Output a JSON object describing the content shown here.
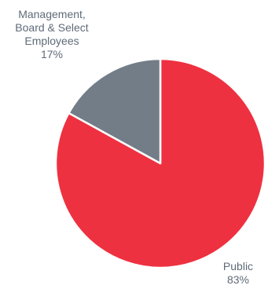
{
  "chart_data": {
    "type": "pie",
    "slices": [
      {
        "name": "Public",
        "value": 83,
        "percent_label": "83%",
        "color": "#ee3140",
        "label_lines": [
          "Public",
          "83%"
        ]
      },
      {
        "name": "Management, Board & Select Employees",
        "value": 17,
        "percent_label": "17%",
        "color": "#737d87",
        "label_lines": [
          "Management,",
          "Board & Select",
          "Employees",
          "17%"
        ]
      }
    ],
    "title": "",
    "legend": "none",
    "start_angle_deg": 0,
    "direction": "clockwise",
    "label_color": "#5f6b78",
    "border_color": "#ffffff"
  }
}
